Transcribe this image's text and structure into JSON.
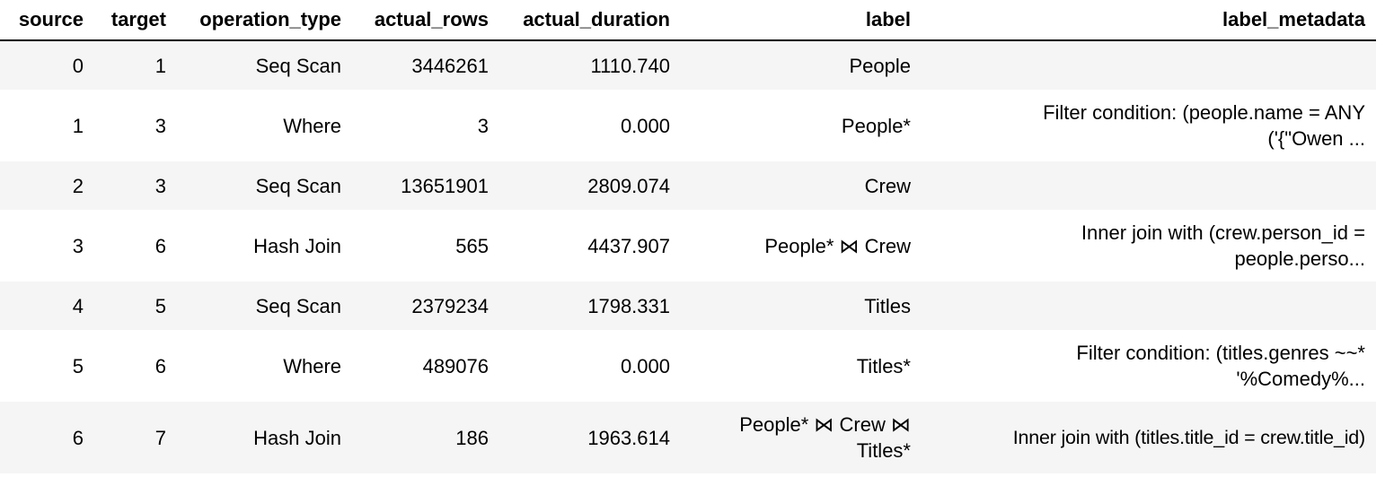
{
  "chart_data": {
    "type": "table",
    "columns": [
      "source",
      "target",
      "operation_type",
      "actual_rows",
      "actual_duration",
      "label",
      "label_metadata"
    ],
    "rows": [
      {
        "source": "0",
        "target": "1",
        "operation_type": "Seq Scan",
        "actual_rows": "3446261",
        "actual_duration": "1110.740",
        "label": "People",
        "label_metadata": ""
      },
      {
        "source": "1",
        "target": "3",
        "operation_type": "Where",
        "actual_rows": "3",
        "actual_duration": "0.000",
        "label": "People*",
        "label_metadata": "Filter condition: (people.name = ANY ('{\"Owen ..."
      },
      {
        "source": "2",
        "target": "3",
        "operation_type": "Seq Scan",
        "actual_rows": "13651901",
        "actual_duration": "2809.074",
        "label": "Crew",
        "label_metadata": ""
      },
      {
        "source": "3",
        "target": "6",
        "operation_type": "Hash Join",
        "actual_rows": "565",
        "actual_duration": "4437.907",
        "label": "People* ⋈ Crew",
        "label_metadata": "Inner join with (crew.person_id = people.perso..."
      },
      {
        "source": "4",
        "target": "5",
        "operation_type": "Seq Scan",
        "actual_rows": "2379234",
        "actual_duration": "1798.331",
        "label": "Titles",
        "label_metadata": ""
      },
      {
        "source": "5",
        "target": "6",
        "operation_type": "Where",
        "actual_rows": "489076",
        "actual_duration": "0.000",
        "label": "Titles*",
        "label_metadata": "Filter condition: (titles.genres ~~* '%Comedy%..."
      },
      {
        "source": "6",
        "target": "7",
        "operation_type": "Hash Join",
        "actual_rows": "186",
        "actual_duration": "1963.614",
        "label": "People* ⋈ Crew ⋈ Titles*",
        "label_metadata": "Inner join with (titles.title_id = crew.title_id)"
      }
    ]
  }
}
